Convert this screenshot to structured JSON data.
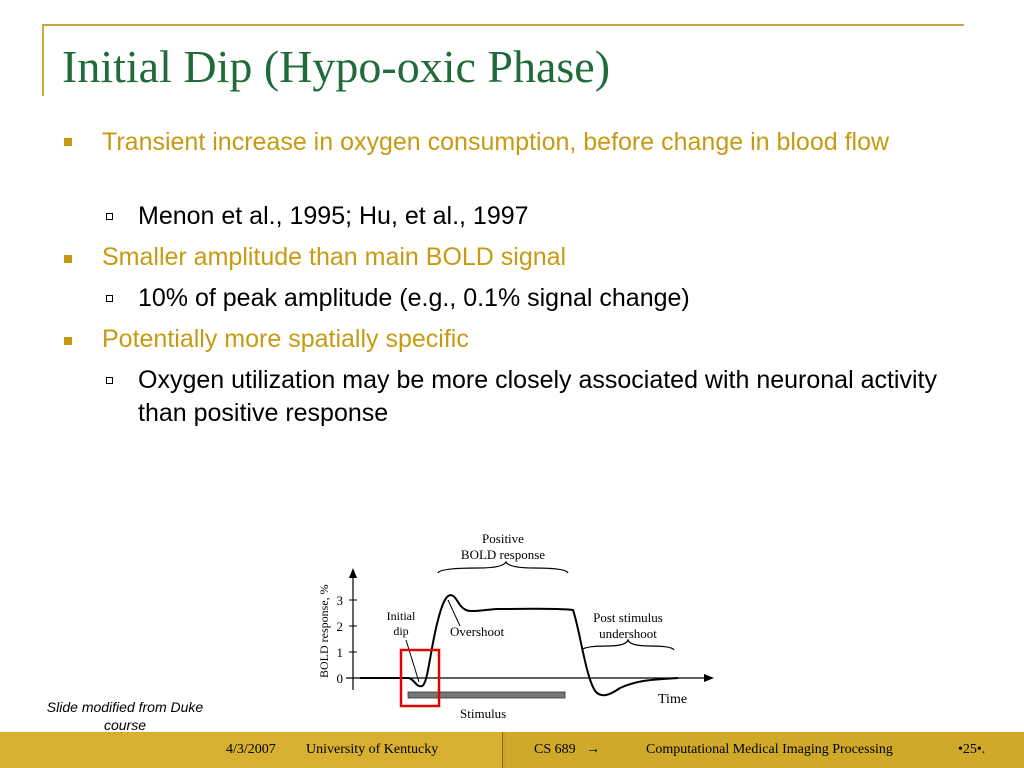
{
  "slide": {
    "title": "Initial Dip (Hypo-oxic Phase)",
    "bullets": [
      {
        "text": "Transient increase in oxygen consumption, before change in blood flow",
        "sub": "Menon et al., 1995; Hu, et al., 1997"
      },
      {
        "text": "Smaller amplitude than main BOLD signal",
        "sub": "10% of peak amplitude (e.g., 0.1% signal change)"
      },
      {
        "text": "Potentially more spatially specific",
        "sub": "Oxygen utilization may be more closely associated with neuronal activity than positive response"
      }
    ],
    "caption": "Slide modified from Duke course"
  },
  "figure": {
    "ylabel": "BOLD response, %",
    "yticks": [
      "0",
      "1",
      "2",
      "3"
    ],
    "positive_label_1": "Positive",
    "positive_label_2": "BOLD response",
    "initial_dip_1": "Initial",
    "initial_dip_2": "dip",
    "overshoot": "Overshoot",
    "undershoot_1": "Post stimulus",
    "undershoot_2": "undershoot",
    "time_label": "Time",
    "stimulus_label": "Stimulus",
    "highlight_color": "#e00000"
  },
  "footer": {
    "date": "4/3/2007",
    "institution": "University of Kentucky",
    "course": "CS 689",
    "arrow": "→",
    "course_title": "Computational Medical Imaging Processing",
    "page": "•25•."
  },
  "colors": {
    "title": "#1f6b3a",
    "bullet": "#c79a11",
    "footer": "#c9a227"
  }
}
